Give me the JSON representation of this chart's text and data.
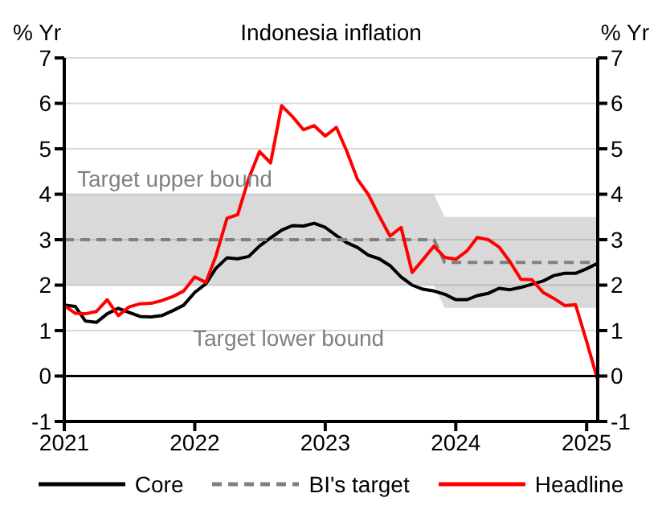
{
  "chart_data": {
    "type": "line",
    "title": "Indonesia inflation",
    "ylabel": "% Yr",
    "y2label": "% Yr",
    "x": [
      "2021-01",
      "2021-02",
      "2021-03",
      "2021-04",
      "2021-05",
      "2021-06",
      "2021-07",
      "2021-08",
      "2021-09",
      "2021-10",
      "2021-11",
      "2021-12",
      "2022-01",
      "2022-02",
      "2022-03",
      "2022-04",
      "2022-05",
      "2022-06",
      "2022-07",
      "2022-08",
      "2022-09",
      "2022-10",
      "2022-11",
      "2022-12",
      "2023-01",
      "2023-02",
      "2023-03",
      "2023-04",
      "2023-05",
      "2023-06",
      "2023-07",
      "2023-08",
      "2023-09",
      "2023-10",
      "2023-11",
      "2023-12",
      "2024-01",
      "2024-02",
      "2024-03",
      "2024-04",
      "2024-05",
      "2024-06",
      "2024-07",
      "2024-08",
      "2024-09",
      "2024-10",
      "2024-11",
      "2024-12",
      "2025-01",
      "2025-02"
    ],
    "series": [
      {
        "name": "Core",
        "color": "#000000",
        "line_style": "solid",
        "values": [
          1.56,
          1.53,
          1.21,
          1.18,
          1.37,
          1.49,
          1.4,
          1.31,
          1.3,
          1.33,
          1.44,
          1.56,
          1.84,
          2.03,
          2.37,
          2.6,
          2.58,
          2.63,
          2.86,
          3.04,
          3.21,
          3.31,
          3.3,
          3.36,
          3.27,
          3.09,
          2.94,
          2.83,
          2.66,
          2.58,
          2.43,
          2.18,
          2.0,
          1.91,
          1.87,
          1.8,
          1.68,
          1.68,
          1.77,
          1.82,
          1.93,
          1.9,
          1.95,
          2.02,
          2.09,
          2.21,
          2.26,
          2.26,
          2.36,
          2.48
        ]
      },
      {
        "name": "BI's target",
        "color": "#808080",
        "line_style": "dashed",
        "values": [
          3,
          3,
          3,
          3,
          3,
          3,
          3,
          3,
          3,
          3,
          3,
          3,
          3,
          3,
          3,
          3,
          3,
          3,
          3,
          3,
          3,
          3,
          3,
          3,
          3,
          3,
          3,
          3,
          3,
          3,
          3,
          3,
          3,
          3,
          3,
          2.5,
          2.5,
          2.5,
          2.5,
          2.5,
          2.5,
          2.5,
          2.5,
          2.5,
          2.5,
          2.5,
          2.5,
          2.5,
          2.5,
          2.5
        ],
        "lower": [
          2,
          2,
          2,
          2,
          2,
          2,
          2,
          2,
          2,
          2,
          2,
          2,
          2,
          2,
          2,
          2,
          2,
          2,
          2,
          2,
          2,
          2,
          2,
          2,
          2,
          2,
          2,
          2,
          2,
          2,
          2,
          2,
          2,
          2,
          2,
          1.5,
          1.5,
          1.5,
          1.5,
          1.5,
          1.5,
          1.5,
          1.5,
          1.5,
          1.5,
          1.5,
          1.5,
          1.5,
          1.5,
          1.5
        ],
        "upper": [
          4,
          4,
          4,
          4,
          4,
          4,
          4,
          4,
          4,
          4,
          4,
          4,
          4,
          4,
          4,
          4,
          4,
          4,
          4,
          4,
          4,
          4,
          4,
          4,
          4,
          4,
          4,
          4,
          4,
          4,
          4,
          4,
          4,
          4,
          4,
          3.5,
          3.5,
          3.5,
          3.5,
          3.5,
          3.5,
          3.5,
          3.5,
          3.5,
          3.5,
          3.5,
          3.5,
          3.5,
          3.5,
          3.5
        ]
      },
      {
        "name": "Headline",
        "color": "#ff0000",
        "line_style": "solid",
        "values": [
          1.55,
          1.38,
          1.37,
          1.42,
          1.68,
          1.33,
          1.52,
          1.59,
          1.6,
          1.66,
          1.75,
          1.87,
          2.18,
          2.06,
          2.64,
          3.47,
          3.55,
          4.35,
          4.94,
          4.69,
          5.95,
          5.71,
          5.42,
          5.51,
          5.28,
          5.47,
          4.97,
          4.33,
          4.0,
          3.52,
          3.08,
          3.27,
          2.28,
          2.56,
          2.86,
          2.61,
          2.57,
          2.75,
          3.05,
          3.0,
          2.84,
          2.51,
          2.13,
          2.12,
          1.84,
          1.71,
          1.55,
          1.57,
          0.76,
          -0.09
        ]
      }
    ],
    "xlim": [
      "2021-01",
      "2025-02"
    ],
    "xticks": [
      {
        "value": "2021-01",
        "label": "2021"
      },
      {
        "value": "2022-01",
        "label": "2022"
      },
      {
        "value": "2023-01",
        "label": "2023"
      },
      {
        "value": "2024-01",
        "label": "2024"
      },
      {
        "value": "2025-01",
        "label": "2025"
      }
    ],
    "ylim": [
      -1,
      7
    ],
    "yticks": [
      -1,
      0,
      1,
      2,
      3,
      4,
      5,
      6,
      7
    ],
    "y2lim": [
      -1,
      7
    ],
    "y2ticks": [
      -1,
      0,
      1,
      2,
      3,
      4,
      5,
      6,
      7
    ],
    "ref_lines": [
      {
        "axis": "y",
        "value": 0,
        "color": "#000000"
      }
    ],
    "annotations": [
      "Target upper bound",
      "Target lower bound"
    ],
    "grid": "y",
    "legend": "bottom",
    "marker": "none"
  }
}
